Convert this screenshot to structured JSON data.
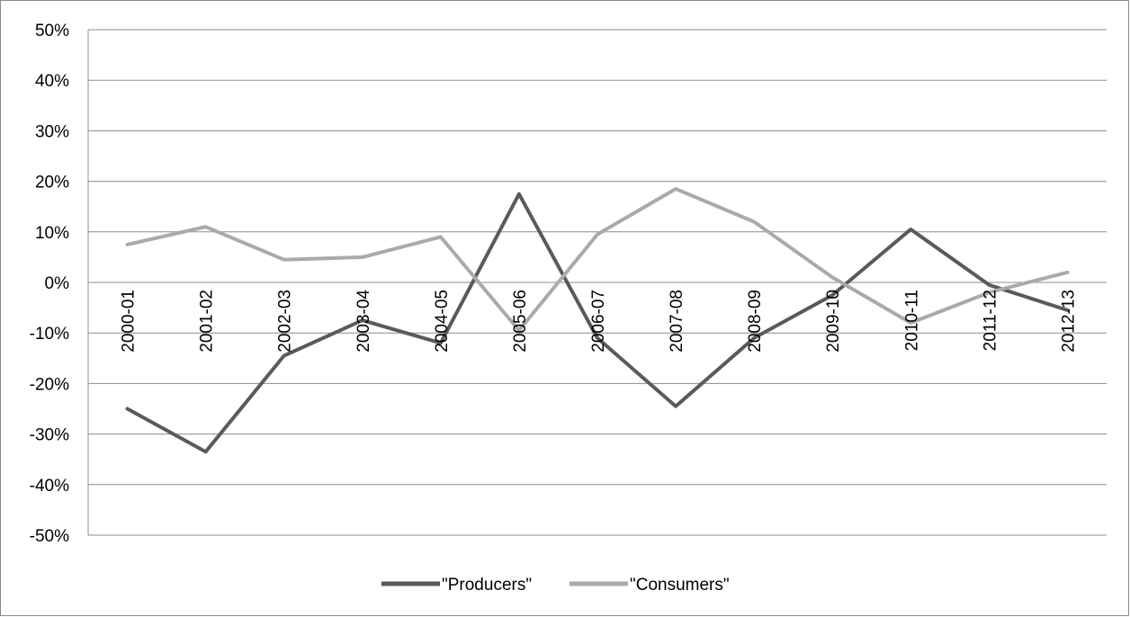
{
  "chart_data": {
    "type": "line",
    "title": "",
    "xlabel": "",
    "ylabel": "",
    "ylim": [
      -0.5,
      0.5
    ],
    "yticks": [
      0.5,
      0.4,
      0.3,
      0.2,
      0.1,
      0,
      -0.1,
      -0.2,
      -0.3,
      -0.4,
      -0.5
    ],
    "ytick_labels": [
      "50%",
      "40%",
      "30%",
      "20%",
      "10%",
      "0%",
      "-10%",
      "-20%",
      "-30%",
      "-40%",
      "-50%"
    ],
    "categories": [
      "2000-01",
      "2001-02",
      "2002-03",
      "2003-04",
      "2004-05",
      "2005-06",
      "2006-07",
      "2007-08",
      "2008-09",
      "2009-10",
      "2010-11",
      "2011-12",
      "2012-13"
    ],
    "grid": true,
    "legend_position": "bottom",
    "series": [
      {
        "name": "\"Producers\"",
        "color": "#5a5a5a",
        "values": [
          -0.25,
          -0.335,
          -0.145,
          -0.075,
          -0.12,
          0.175,
          -0.11,
          -0.245,
          -0.11,
          -0.025,
          0.105,
          -0.005,
          -0.055
        ]
      },
      {
        "name": "\"Consumers\"",
        "color": "#aaaaaa",
        "values": [
          0.075,
          0.11,
          0.045,
          0.05,
          0.09,
          -0.095,
          0.095,
          0.185,
          0.12,
          0.01,
          -0.08,
          -0.02,
          0.02
        ]
      }
    ]
  }
}
